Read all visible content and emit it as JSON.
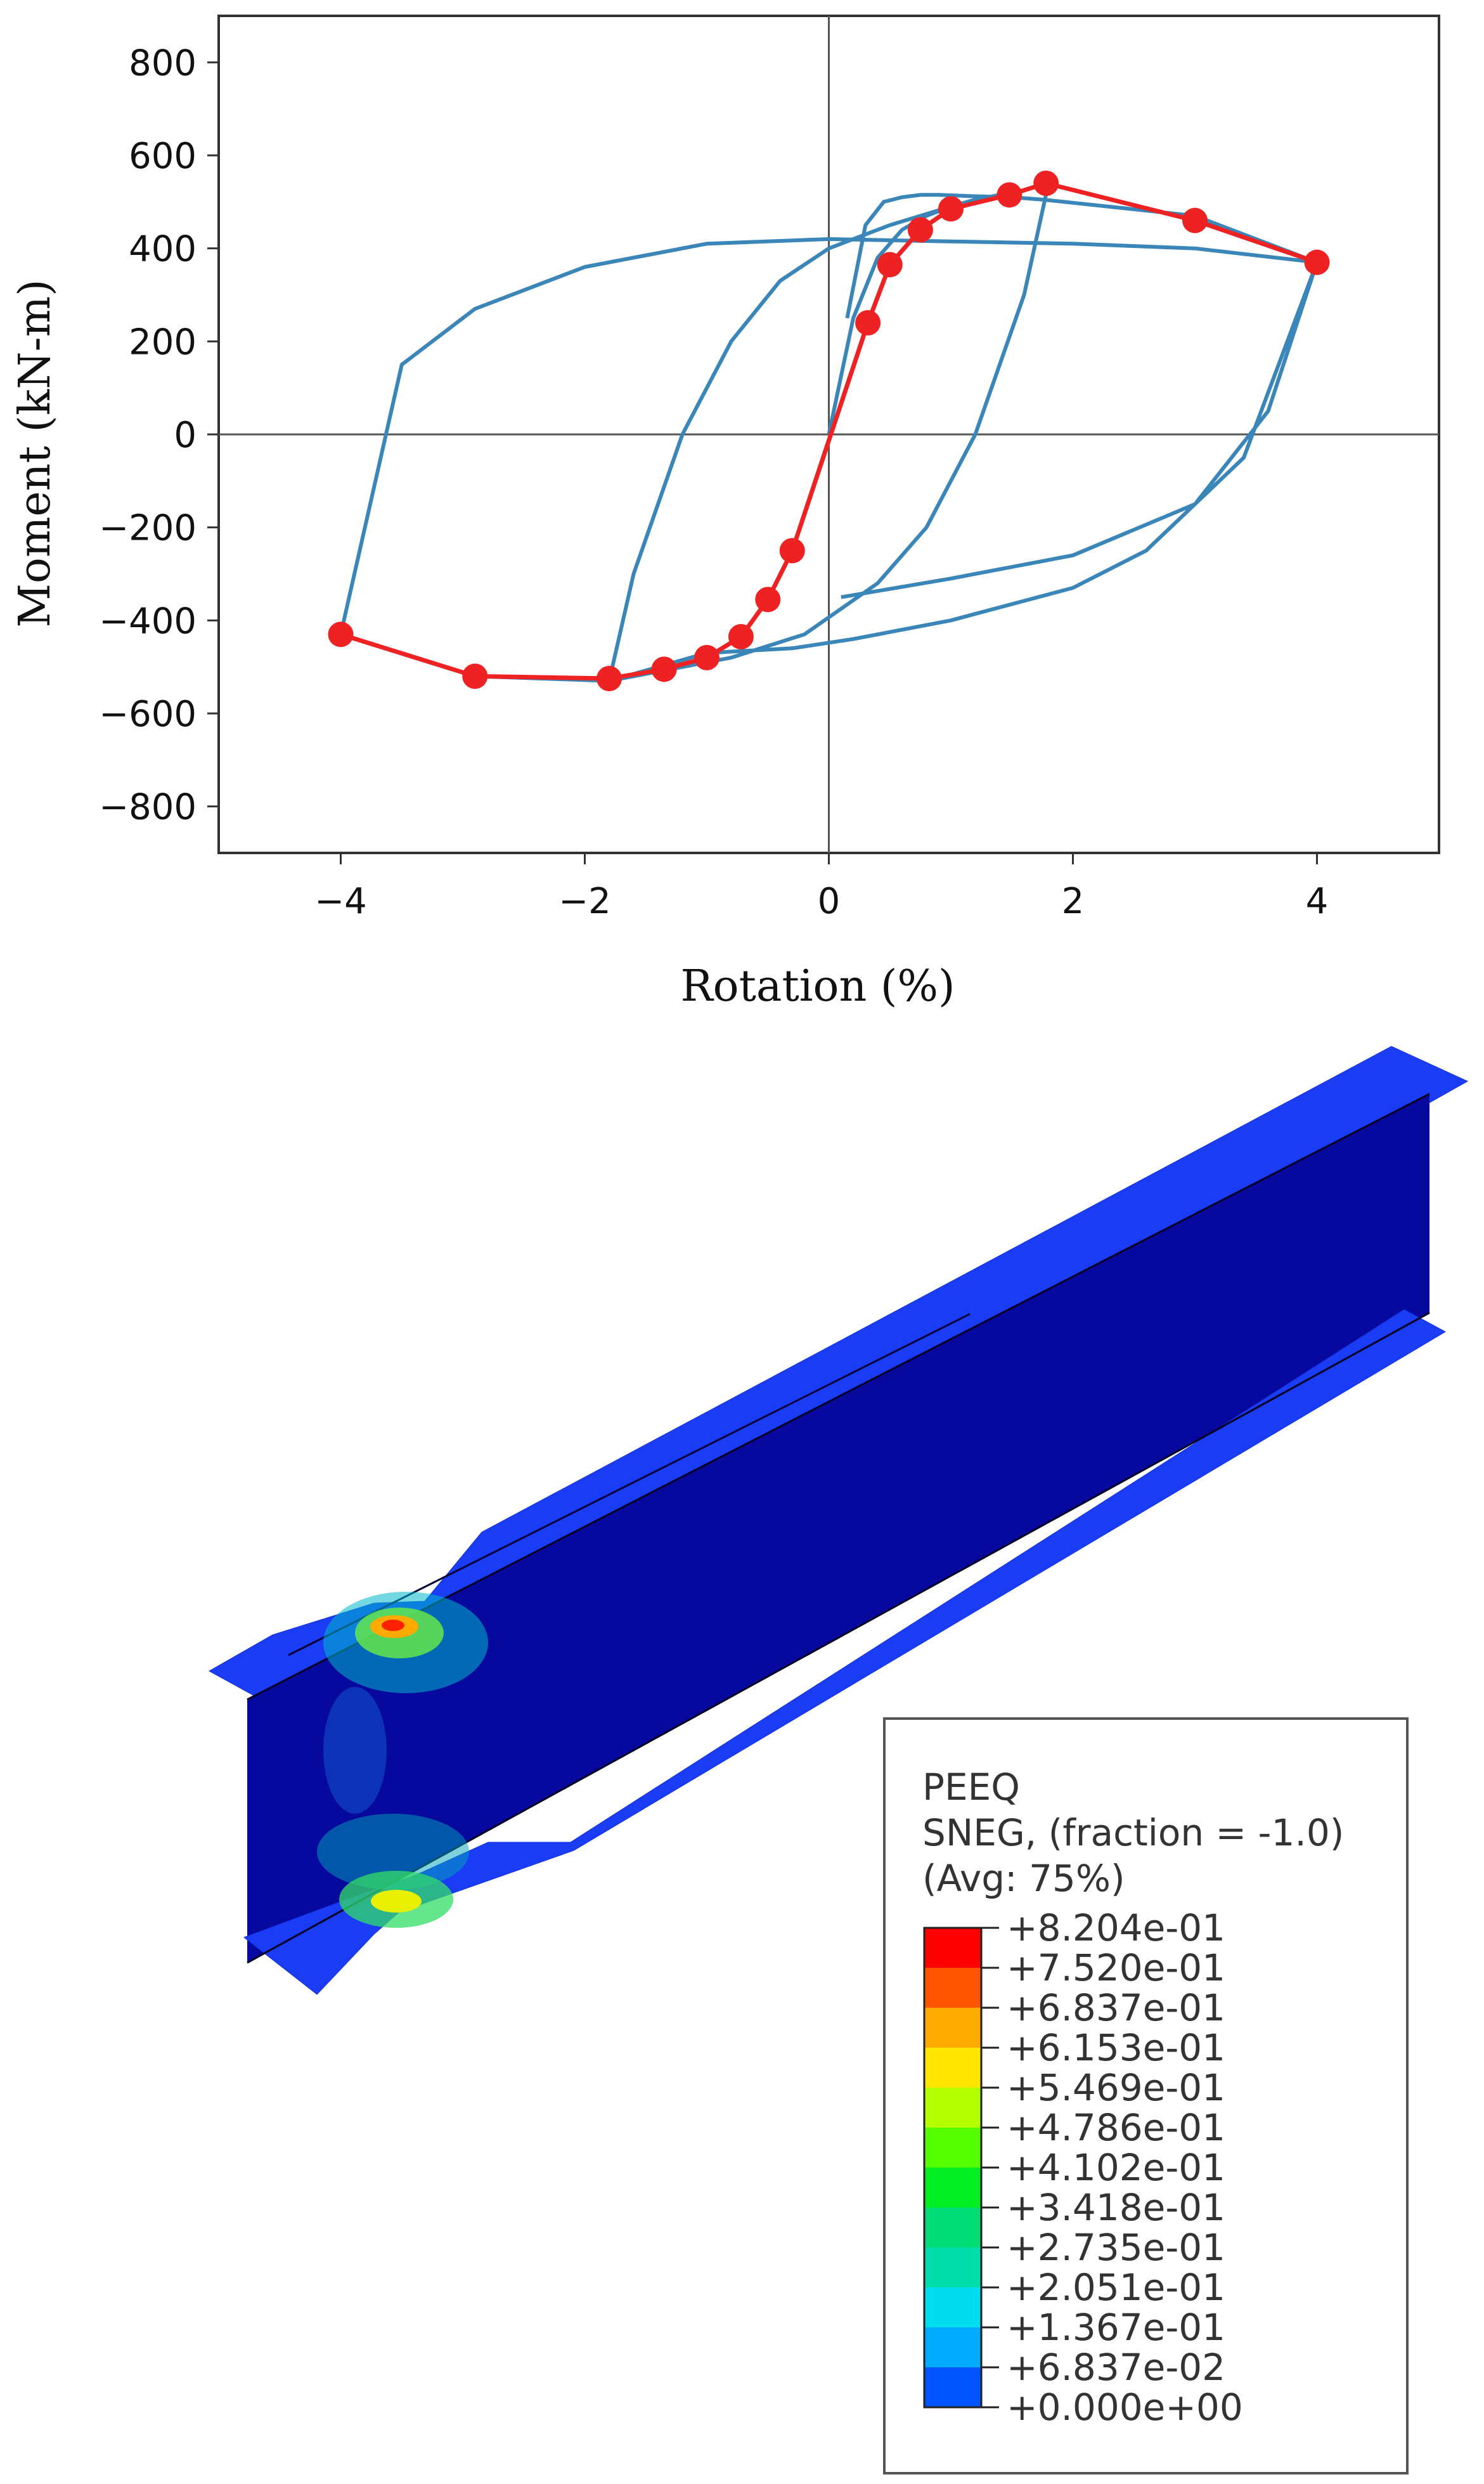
{
  "chart_data": {
    "type": "line",
    "title": "",
    "xlabel": "Rotation (%)",
    "ylabel": "Moment  (kN-m)",
    "xlim": [
      -5,
      5
    ],
    "ylim": [
      -900,
      900
    ],
    "xticks": [
      -4,
      -2,
      0,
      2,
      4
    ],
    "xtick_labels": [
      "−4",
      "−2",
      "0",
      "2",
      "4"
    ],
    "yticks": [
      800,
      600,
      400,
      200,
      0,
      -200,
      -400,
      -600,
      -800
    ],
    "ytick_labels": [
      "800",
      "600",
      "400",
      "200",
      "0",
      "−200",
      "−400",
      "−600",
      "−800"
    ],
    "grid": false,
    "zero_lines": true,
    "colors": {
      "hysteresis": "#3a86b8",
      "backbone": "#ee2222",
      "axes": "#333333"
    },
    "series": [
      {
        "style": "hysteresis",
        "x": [
          0.15,
          0.3,
          0.45,
          0.6,
          0.75,
          0.9,
          1.2,
          1.5,
          1.75,
          3.0,
          4.0,
          3.4,
          2.6,
          2.0,
          1.0,
          0.2,
          -0.3,
          -1.0,
          -1.8,
          -2.9,
          -4.0,
          -3.5,
          -2.9,
          -2.0,
          -1.0,
          0.0,
          1.0,
          2.0,
          3.0,
          4.0,
          3.6,
          3.0,
          2.0,
          1.0,
          0.1
        ],
        "y": [
          250,
          450,
          500,
          510,
          515,
          515,
          512,
          510,
          505,
          470,
          370,
          -50,
          -250,
          -330,
          -400,
          -440,
          -460,
          -470,
          -530,
          -520,
          -430,
          150,
          270,
          360,
          410,
          420,
          415,
          410,
          400,
          370,
          50,
          -150,
          -260,
          -310,
          -350
        ]
      },
      {
        "style": "hysteresis",
        "x": [
          0.0,
          0.2,
          0.4,
          0.6,
          0.8,
          1.0,
          1.2,
          1.4,
          1.6,
          1.8,
          1.6,
          1.2,
          0.8,
          0.4,
          -0.2,
          -0.8,
          -1.4,
          -1.8,
          -1.6,
          -1.2,
          -0.8,
          -0.4,
          0.0,
          0.5,
          1.0,
          1.5
        ],
        "y": [
          0,
          250,
          380,
          440,
          470,
          490,
          505,
          515,
          525,
          540,
          300,
          0,
          -200,
          -320,
          -430,
          -480,
          -510,
          -530,
          -300,
          0,
          200,
          330,
          400,
          450,
          490,
          520
        ]
      }
    ],
    "backbone": {
      "x": [
        -4.0,
        -2.9,
        -1.8,
        -1.35,
        -1.0,
        -0.72,
        -0.5,
        -0.3,
        0.32,
        0.5,
        0.75,
        1.0,
        1.48,
        1.78,
        3.0,
        4.0
      ],
      "y": [
        -430,
        -520,
        -525,
        -505,
        -480,
        -435,
        -355,
        -250,
        240,
        365,
        440,
        485,
        515,
        540,
        460,
        370
      ]
    }
  },
  "legend": {
    "title_line1": "PEEQ",
    "title_line2": "SNEG, (fraction = -1.0)",
    "title_line3": "(Avg: 75%)",
    "entries": [
      {
        "label": "+8.204e-01",
        "color": "#ff0000"
      },
      {
        "label": "+7.520e-01",
        "color": "#ff5500"
      },
      {
        "label": "+6.837e-01",
        "color": "#ffaa00"
      },
      {
        "label": "+6.153e-01",
        "color": "#ffe600"
      },
      {
        "label": "+5.469e-01",
        "color": "#b4ff00"
      },
      {
        "label": "+4.786e-01",
        "color": "#55ff00"
      },
      {
        "label": "+4.102e-01",
        "color": "#00ee22"
      },
      {
        "label": "+3.418e-01",
        "color": "#00dd77"
      },
      {
        "label": "+2.735e-01",
        "color": "#00ddaa"
      },
      {
        "label": "+2.051e-01",
        "color": "#00ddee"
      },
      {
        "label": "+1.367e-01",
        "color": "#00aaff"
      },
      {
        "label": "+6.837e-02",
        "color": "#0055ff"
      },
      {
        "label": "+0.000e+00",
        "color": "#0000ff"
      }
    ]
  },
  "beam_colors": {
    "flange": "#1a3cf5",
    "web": "#07089e",
    "flange_edge": "#1230dd"
  }
}
